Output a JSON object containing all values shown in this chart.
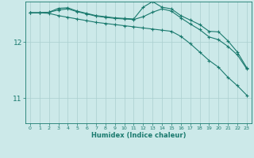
{
  "background_color": "#cce9e9",
  "grid_color": "#aacfcf",
  "line_color": "#1a7a6e",
  "xlabel": "Humidex (Indice chaleur)",
  "ylabel_ticks": [
    11,
    12
  ],
  "xlim": [
    -0.5,
    23.5
  ],
  "ylim": [
    10.55,
    12.72
  ],
  "x": [
    0,
    1,
    2,
    3,
    4,
    5,
    6,
    7,
    8,
    9,
    10,
    11,
    12,
    13,
    14,
    15,
    16,
    17,
    18,
    19,
    20,
    21,
    22,
    23
  ],
  "series": [
    [
      12.52,
      12.52,
      12.53,
      12.6,
      12.61,
      12.55,
      12.51,
      12.47,
      12.45,
      12.43,
      12.42,
      12.41,
      12.62,
      12.72,
      12.62,
      12.59,
      12.47,
      12.39,
      12.31,
      12.19,
      12.18,
      12.02,
      11.82,
      11.54
    ],
    [
      12.52,
      12.52,
      12.51,
      12.47,
      12.44,
      12.41,
      12.38,
      12.35,
      12.33,
      12.31,
      12.29,
      12.27,
      12.25,
      12.23,
      12.21,
      12.19,
      12.1,
      11.97,
      11.82,
      11.67,
      11.55,
      11.37,
      11.22,
      11.05
    ],
    [
      12.52,
      12.52,
      12.53,
      12.57,
      12.59,
      12.54,
      12.5,
      12.46,
      12.44,
      12.42,
      12.41,
      12.4,
      12.45,
      12.53,
      12.59,
      12.55,
      12.43,
      12.32,
      12.22,
      12.09,
      12.04,
      11.92,
      11.77,
      11.52
    ]
  ]
}
